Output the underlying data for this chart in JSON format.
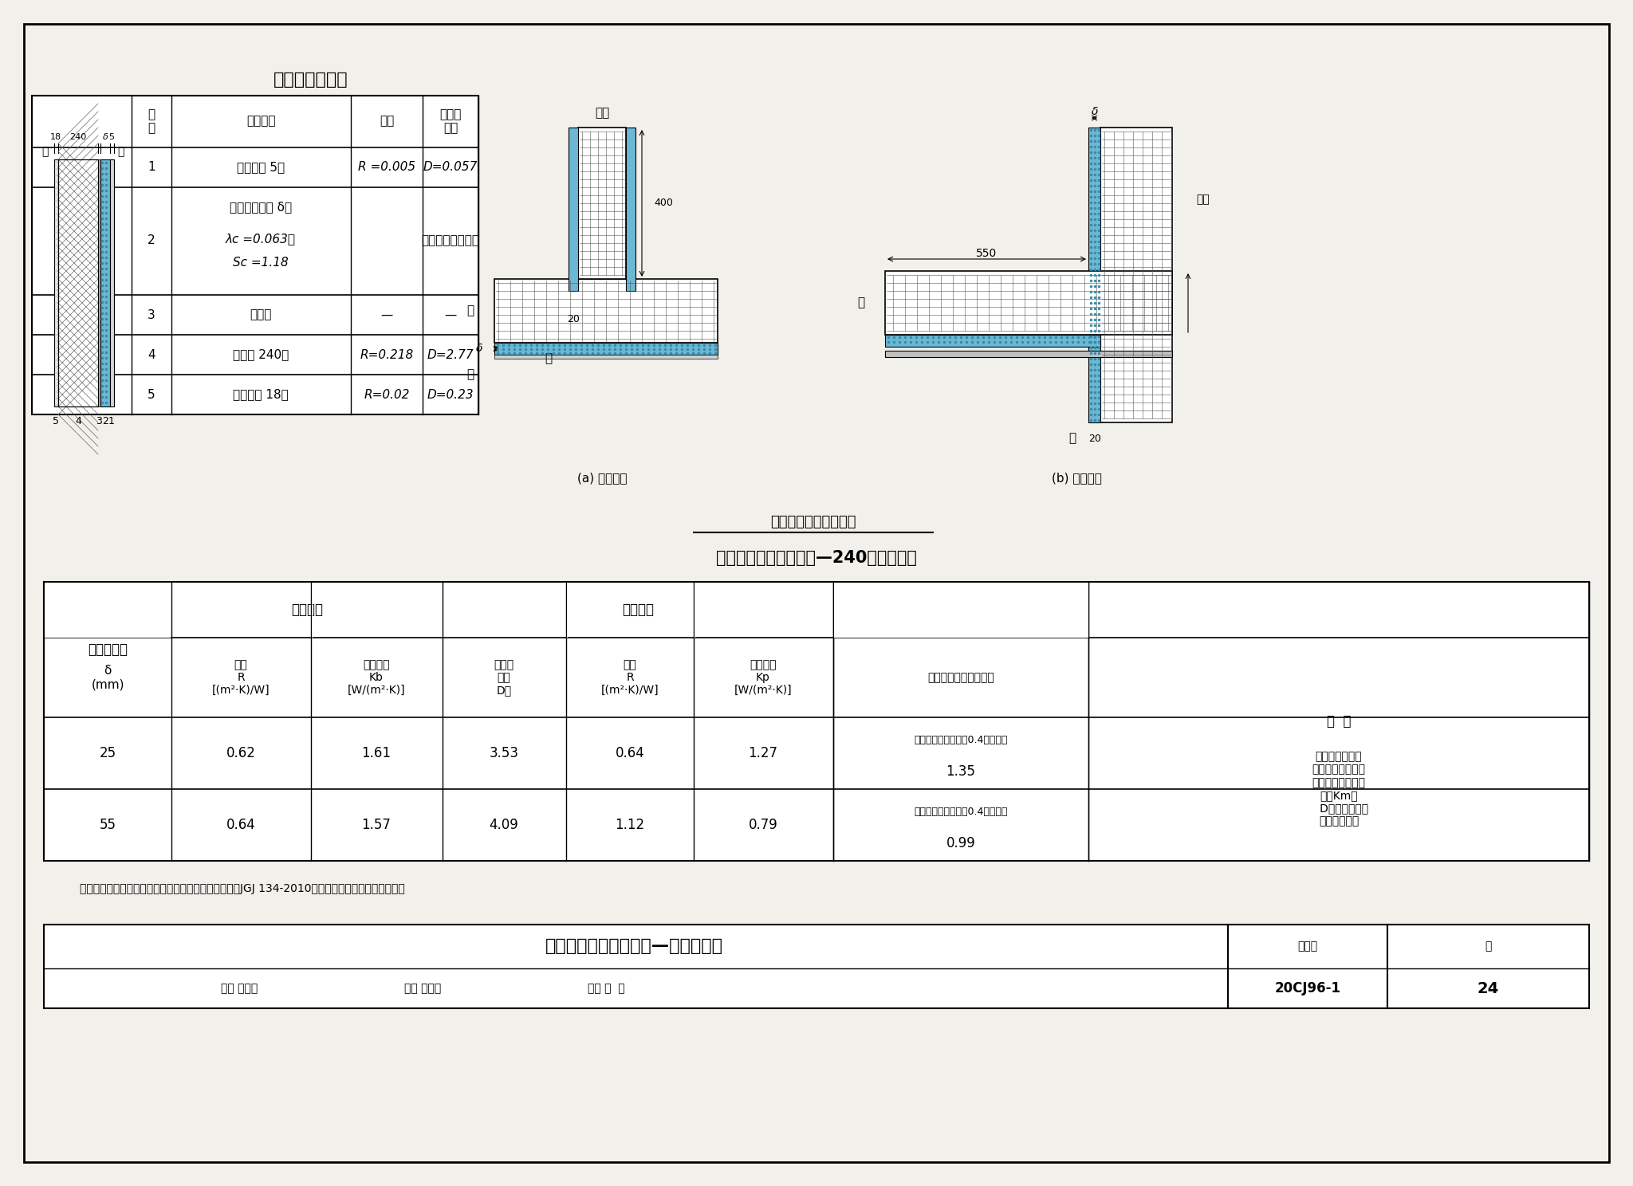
{
  "page_bg": "#f2f0eb",
  "title1": "外墙内保温做法",
  "title2": "外墙内保温热工性能表—2 4 0厚灰砂砖墙",
  "title3": "外墙内保温构造示意图",
  "footer_title": "外墙内保温热工性能表—灰砂砖墙体",
  "atlas_no": "20CJ96-1",
  "page_no": "24",
  "note_text": "注：本表根据《夏热冬冷地区居住建筑节能设计标准》JGJ 134-2010编制，可供夏热冬暖地区参考。",
  "label_a": "(a) 平面节点",
  "label_b": "(b) 剖面节点",
  "row1_name": "抗裂砂浆 5厚",
  "row1_R": "R =0.005",
  "row1_D": "D=0.057",
  "row2_name": "膏状保温材料 δ厚",
  "row2_sub1": "λc =0.063；",
  "row2_sub2": "Sc =1.18",
  "row2_D": "根据设计厚度取值",
  "row3_name": "界面剂",
  "row4_name": "灰砂砖 240厚",
  "row4_R": "R=0.218",
  "row4_D": "D=2.77",
  "row5_name": "水泥砂浆 18厚",
  "row5_R": "R=0.02",
  "row5_D": "D=0.23",
  "remark": "表中外墙传热系\n数为包括结构性热\n桥在内的平均传热\n系数Km。\n   D是外墙主体部\n位热惰性指标"
}
